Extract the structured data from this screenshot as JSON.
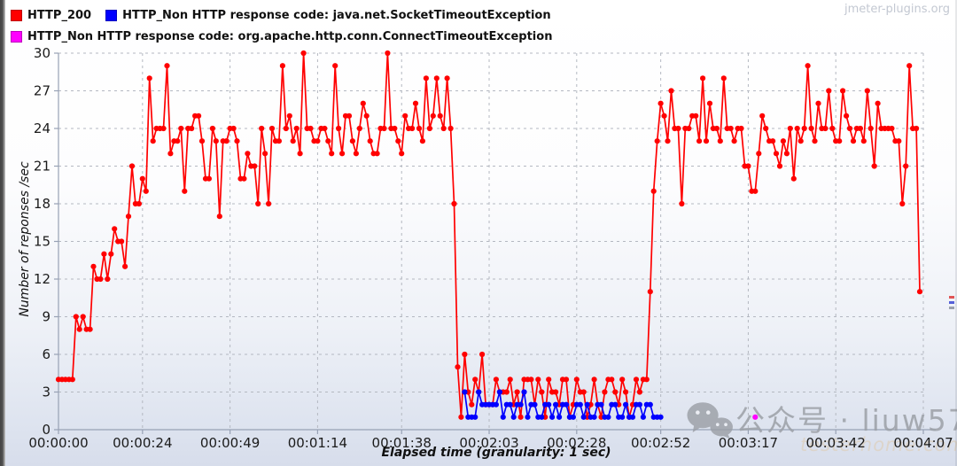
{
  "legend": {
    "items": [
      {
        "label": "HTTP_200",
        "color": "#ff0000"
      },
      {
        "label": "HTTP_Non HTTP response code: java.net.SocketTimeoutException",
        "color": "#0000ff"
      },
      {
        "label": "HTTP_Non HTTP response code: org.apache.http.conn.ConnectTimeoutException",
        "color": "#ff00ff"
      }
    ]
  },
  "watermarks": {
    "top_right": "jmeter-plugins.org",
    "wechat_brand": "公众号 · liuw57",
    "site": "testerhome.com"
  },
  "colors": {
    "grid": "#b4b8c1",
    "axis": "#97a1b4",
    "red_series": "#ff0000",
    "blue_series": "#0000ff",
    "magenta_series": "#ff00ff",
    "page_bg_bottom": "#d7ddeb"
  },
  "chart_data": {
    "type": "line",
    "title": "",
    "xlabel": "Elapsed time (granularity: 1 sec)",
    "ylabel": "Number of reponses /sec",
    "xlim_seconds": [
      0,
      247
    ],
    "ylim": [
      0,
      30
    ],
    "grid": true,
    "legend_position": "top-left",
    "marker": "circle",
    "yticks": [
      0,
      3,
      6,
      9,
      12,
      15,
      18,
      21,
      24,
      27,
      30
    ],
    "xticks": [
      {
        "seconds": 0,
        "label": "00:00:00"
      },
      {
        "seconds": 24,
        "label": "00:00:24"
      },
      {
        "seconds": 49,
        "label": "00:00:49"
      },
      {
        "seconds": 74,
        "label": "00:01:14"
      },
      {
        "seconds": 98,
        "label": "00:01:38"
      },
      {
        "seconds": 123,
        "label": "00:02:03"
      },
      {
        "seconds": 148,
        "label": "00:02:28"
      },
      {
        "seconds": 172,
        "label": "00:02:52"
      },
      {
        "seconds": 197,
        "label": "00:03:17"
      },
      {
        "seconds": 222,
        "label": "00:03:42"
      },
      {
        "seconds": 247,
        "label": "00:04:07"
      }
    ],
    "series": [
      {
        "name": "HTTP_200",
        "color": "#ff0000",
        "start_sec": 0,
        "step_sec": 1,
        "values": [
          4,
          4,
          4,
          4,
          4,
          9,
          8,
          9,
          8,
          8,
          13,
          12,
          12,
          14,
          12,
          14,
          16,
          15,
          15,
          13,
          17,
          21,
          18,
          18,
          20,
          19,
          28,
          23,
          24,
          24,
          24,
          29,
          22,
          23,
          23,
          24,
          19,
          24,
          24,
          25,
          25,
          23,
          20,
          20,
          24,
          23,
          17,
          23,
          23,
          24,
          24,
          23,
          20,
          20,
          22,
          21,
          21,
          18,
          24,
          22,
          18,
          24,
          23,
          23,
          29,
          24,
          25,
          23,
          24,
          22,
          30,
          24,
          24,
          23,
          23,
          24,
          24,
          23,
          22,
          29,
          24,
          22,
          25,
          25,
          23,
          22,
          24,
          26,
          25,
          23,
          22,
          22,
          24,
          24,
          30,
          24,
          24,
          23,
          22,
          25,
          24,
          24,
          26,
          24,
          23,
          28,
          24,
          25,
          28,
          25,
          24,
          28,
          24,
          18,
          5,
          1,
          6,
          3,
          2,
          4,
          3,
          6,
          2,
          2,
          2,
          4,
          3,
          3,
          3,
          4,
          2,
          3,
          1,
          4,
          4,
          4,
          2,
          4,
          3,
          1,
          4,
          3,
          3,
          2,
          4,
          4,
          1,
          2,
          4,
          3,
          3,
          1,
          2,
          4,
          2,
          1,
          3,
          4,
          4,
          3,
          2,
          4,
          3,
          1,
          2,
          4,
          3,
          4,
          4,
          11,
          19,
          23,
          26,
          25,
          23,
          27,
          24,
          24,
          18,
          24,
          24,
          25,
          25,
          23,
          28,
          23,
          26,
          24,
          24,
          23,
          28,
          24,
          24,
          23,
          24,
          24,
          21,
          21,
          19,
          19,
          22,
          25,
          24,
          23,
          23,
          22,
          21,
          23,
          22,
          24,
          20,
          24,
          23,
          24,
          29,
          24,
          23,
          26,
          24,
          24,
          27,
          24,
          23,
          23,
          27,
          25,
          24,
          23,
          24,
          24,
          23,
          27,
          24,
          21,
          26,
          24,
          24,
          24,
          24,
          23,
          23,
          18,
          21,
          29,
          24,
          24,
          11
        ]
      },
      {
        "name": "HTTP_Non HTTP response code: java.net.SocketTimeoutException",
        "color": "#0000ff",
        "start_sec": 116,
        "step_sec": 1,
        "values": [
          3,
          1,
          1,
          1,
          3,
          2,
          2,
          2,
          2,
          2,
          3,
          1,
          2,
          2,
          1,
          2,
          2,
          3,
          1,
          2,
          2,
          1,
          1,
          2,
          2,
          1,
          2,
          1,
          2,
          2,
          1,
          1,
          2,
          2,
          1,
          2,
          1,
          1,
          2,
          2,
          1,
          1,
          2,
          2,
          1,
          1,
          2,
          1,
          1,
          2,
          2,
          1,
          2,
          2,
          1,
          1,
          1
        ]
      },
      {
        "name": "HTTP_Non HTTP response code: org.apache.http.conn.ConnectTimeoutException",
        "color": "#ff00ff",
        "start_sec": 199,
        "step_sec": 1,
        "values": [
          1
        ]
      }
    ]
  }
}
